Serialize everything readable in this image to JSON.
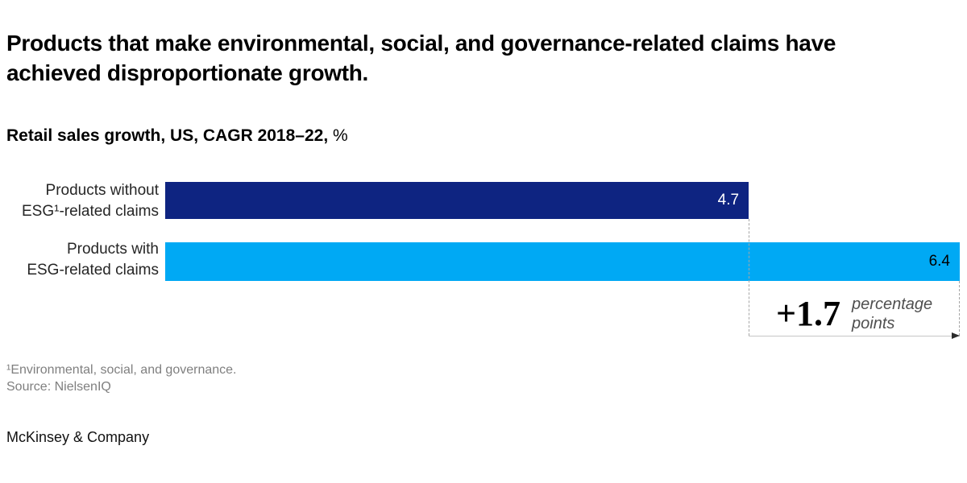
{
  "header": {
    "title": "Products that make environmental, social, and governance-related claims have\nachieved disproportionate growth.",
    "subtitle_bold": "Retail sales growth, US, CAGR 2018–22,",
    "subtitle_unit": "%"
  },
  "chart_data": {
    "type": "bar",
    "orientation": "horizontal",
    "title": "Retail sales growth, US, CAGR 2018–22, %",
    "categories": [
      "Products without\nESG¹-related claims",
      "Products with\nESG-related claims"
    ],
    "values": [
      4.7,
      6.4
    ],
    "value_labels": [
      "4.7",
      "6.4"
    ],
    "bar_colors": [
      "#0e2481",
      "#00a9f4"
    ],
    "value_label_colors": [
      "#ffffff",
      "#000000"
    ],
    "xlim": [
      0,
      6.4
    ],
    "grid": "off",
    "difference_annotation": {
      "value": "+1.7",
      "label": "percentage\npoints"
    }
  },
  "footnotes": {
    "line1": "¹Environmental, social, and governance.",
    "line2": "Source: NielsenIQ"
  },
  "footer": {
    "logo": "McKinsey & Company"
  }
}
